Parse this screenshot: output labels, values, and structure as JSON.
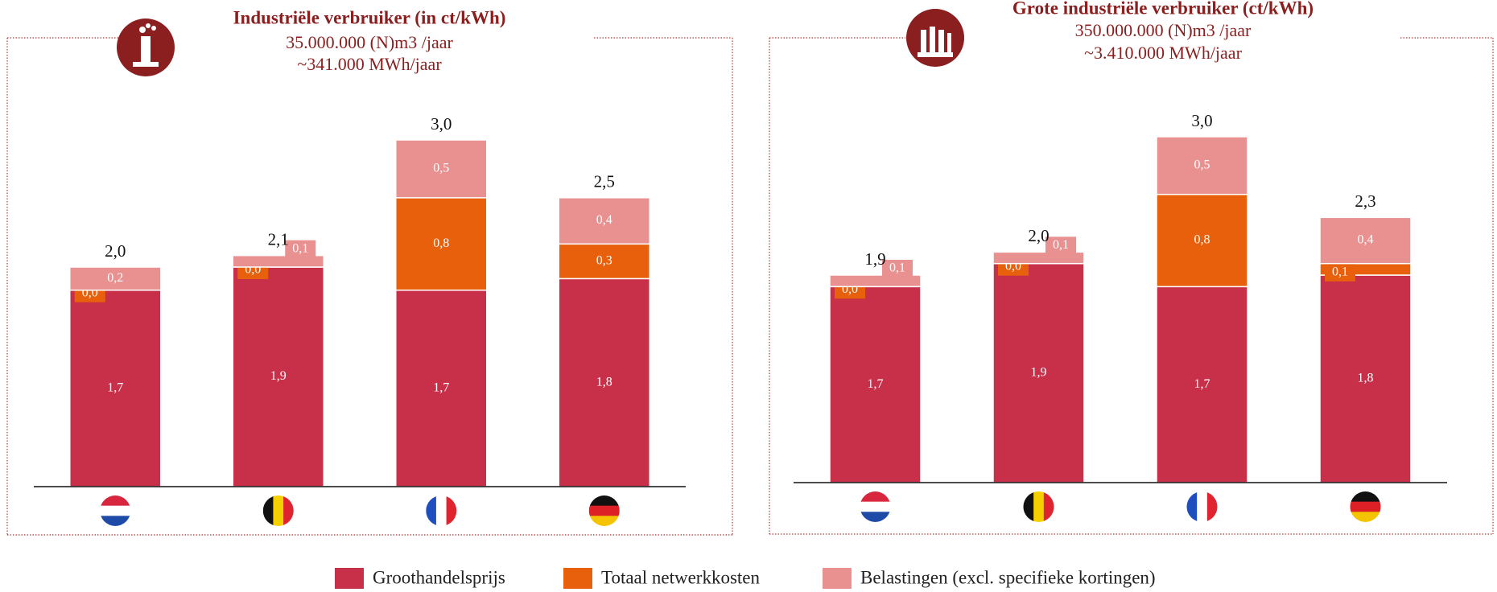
{
  "legend": [
    {
      "name": "Groothandelsprijs",
      "color": "#c8304a"
    },
    {
      "name": "Totaal netwerkkosten",
      "color": "#e8600c"
    },
    {
      "name": "Belastingen (excl. specifieke kortingen)",
      "color": "#e99090"
    }
  ],
  "chart_data": [
    {
      "type": "bar",
      "title": "Industriële verbruiker (in ct/kWh)",
      "subtitle": [
        "35.000.000 (N)m3 /jaar",
        "~341.000 MWh/jaar"
      ],
      "categories": [
        null,
        null,
        null,
        null
      ],
      "series": [
        {
          "values": [
            1.7,
            1.9,
            1.7,
            1.8
          ],
          "value_labels": [
            "1,7",
            "1,9",
            "1,7",
            "1,8"
          ]
        },
        {
          "values": [
            0.0,
            0.0,
            0.8,
            0.3
          ],
          "value_labels": [
            "0,0",
            "0,0",
            "0,8",
            "0,3"
          ]
        },
        {
          "values": [
            0.2,
            0.1,
            0.5,
            0.4
          ],
          "value_labels": [
            "0,2",
            "0,1",
            "0,5",
            "0,4"
          ]
        }
      ],
      "totals": {
        "values": [
          2.0,
          2.1,
          3.0,
          2.5
        ],
        "value_labels": [
          "2,0",
          "2,1",
          "3,0",
          "2,5"
        ]
      }
    },
    {
      "type": "bar",
      "title": "Grote industriële verbruiker (ct/kWh)",
      "subtitle": [
        "350.000.000 (N)m3 /jaar",
        "~3.410.000 MWh/jaar"
      ],
      "categories": [
        null,
        null,
        null,
        null
      ],
      "series": [
        {
          "values": [
            1.7,
            1.9,
            1.7,
            1.8
          ],
          "value_labels": [
            "1,7",
            "1,9",
            "1,7",
            "1,8"
          ]
        },
        {
          "values": [
            0.0,
            0.0,
            0.8,
            0.1
          ],
          "value_labels": [
            "0,0",
            "0,0",
            "0,8",
            "0,1"
          ]
        },
        {
          "values": [
            0.1,
            0.1,
            0.5,
            0.4
          ],
          "value_labels": [
            "0,1",
            "0,1",
            "0,5",
            "0,4"
          ]
        }
      ],
      "totals": {
        "values": [
          1.9,
          2.0,
          3.0,
          2.3
        ],
        "value_labels": [
          "1,9",
          "2,0",
          "3,0",
          "2,3"
        ]
      }
    }
  ]
}
